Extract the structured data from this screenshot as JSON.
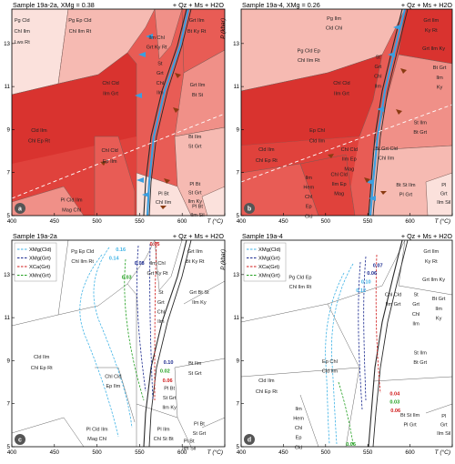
{
  "axes": {
    "xlabel": "T (°C)",
    "ylabel": "P (kbar)",
    "xticks": [
      "400",
      "450",
      "500",
      "550",
      "600",
      "650"
    ],
    "yticks": [
      "5",
      "7",
      "9",
      "11",
      "13"
    ],
    "xlim": [
      400,
      650
    ],
    "ylim": [
      5,
      14.6
    ]
  },
  "colors": {
    "dark": "#d9332f",
    "mid": "#e85c55",
    "light": "#f09088",
    "pale": "#f6bab2",
    "palest": "#fbe1dc",
    "blue": "#3b9fe0",
    "brown": "#8a3b12",
    "cyan": "#3fb3e6",
    "navy": "#1b2a8f",
    "red": "#d01818",
    "green": "#22a020"
  },
  "panels": [
    {
      "id": "a",
      "title": "Sample 19a-2a, XMg = 0.38",
      "assemblage": "+ Qz + Ms + H2O"
    },
    {
      "id": "b",
      "title": "Sample 19a-4, XMg = 0.26",
      "assemblage": "+ Qz + Ms + H2O"
    },
    {
      "id": "c",
      "title": "Sample 19a-2a",
      "assemblage": "+ Qz + Ms + H2O"
    },
    {
      "id": "d",
      "title": "Sample 19a-4",
      "assemblage": "+ Qz + Ms + H2O"
    }
  ],
  "fields_top_a": [
    {
      "text": "Pg Cld",
      "t": 412,
      "p": 14.0
    },
    {
      "text": "Chl Ilm",
      "t": 412,
      "p": 13.5
    },
    {
      "text": "Lws Rt",
      "t": 412,
      "p": 13.0
    },
    {
      "text": "Pg Ep Cld",
      "t": 480,
      "p": 14.0
    },
    {
      "text": "Chl Ilm Rt",
      "t": 480,
      "p": 13.5
    },
    {
      "text": "Grt Ilm",
      "t": 617,
      "p": 14.0
    },
    {
      "text": "Bt Ky Rt",
      "t": 617,
      "p": 13.5
    },
    {
      "text": "Ilm Chl",
      "t": 570,
      "p": 13.2
    },
    {
      "text": "Grt Ky Rt",
      "t": 570,
      "p": 12.75
    },
    {
      "text": "St",
      "t": 574,
      "p": 12.0
    },
    {
      "text": "Grt",
      "t": 574,
      "p": 11.55
    },
    {
      "text": "Chl",
      "t": 574,
      "p": 11.1
    },
    {
      "text": "Ilm",
      "t": 574,
      "p": 10.65
    },
    {
      "text": "Chl Cld",
      "t": 516,
      "p": 11.1
    },
    {
      "text": "Ilm Grt",
      "t": 516,
      "p": 10.6
    },
    {
      "text": "Grt Ilm",
      "t": 618,
      "p": 11.0
    },
    {
      "text": "Bt St",
      "t": 618,
      "p": 10.55
    },
    {
      "text": "Cld Ilm",
      "t": 432,
      "p": 8.9
    },
    {
      "text": "Chl Ep Rt",
      "t": 432,
      "p": 8.4
    },
    {
      "text": "Bt Ilm",
      "t": 615,
      "p": 8.6
    },
    {
      "text": "St Grt",
      "t": 615,
      "p": 8.15
    },
    {
      "text": "Chl Cld",
      "t": 515,
      "p": 7.95
    },
    {
      "text": "Ep Ilm",
      "t": 515,
      "p": 7.45
    },
    {
      "text": "Pl Bt",
      "t": 615,
      "p": 6.4
    },
    {
      "text": "St Grt",
      "t": 615,
      "p": 6.0
    },
    {
      "text": "Ilm Ky",
      "t": 615,
      "p": 5.6
    },
    {
      "text": "Pl Cld Ilm",
      "t": 470,
      "p": 5.65
    },
    {
      "text": "Mag Chl",
      "t": 470,
      "p": 5.2
    },
    {
      "text": "Pl Bt",
      "t": 578,
      "p": 5.95
    },
    {
      "text": "Chl Ilm",
      "t": 578,
      "p": 5.55
    },
    {
      "text": "Pl Bt",
      "t": 618,
      "p": 5.35
    },
    {
      "text": "Ilm Sil",
      "t": 618,
      "p": 4.95
    }
  ],
  "fields_top_b": [
    {
      "text": "Grt Ilm",
      "t": 625,
      "p": 14.0
    },
    {
      "text": "Ky Rt",
      "t": 625,
      "p": 13.55
    },
    {
      "text": "Grt Ilm Ky",
      "t": 628,
      "p": 12.7
    },
    {
      "text": "Pg Cld Ep",
      "t": 480,
      "p": 12.6
    },
    {
      "text": "Chl Ilm Rt",
      "t": 480,
      "p": 12.15
    },
    {
      "text": "Pg Ilm",
      "t": 510,
      "p": 14.1
    },
    {
      "text": "Cld Chl",
      "t": 510,
      "p": 13.65
    },
    {
      "text": "St",
      "t": 562,
      "p": 12.3
    },
    {
      "text": "Grt",
      "t": 562,
      "p": 11.85
    },
    {
      "text": "Chl",
      "t": 562,
      "p": 11.4
    },
    {
      "text": "Ilm",
      "t": 562,
      "p": 10.95
    },
    {
      "text": "Chl Cld",
      "t": 519,
      "p": 11.1
    },
    {
      "text": "Ilm Grt",
      "t": 519,
      "p": 10.6
    },
    {
      "text": "Bt Grt",
      "t": 635,
      "p": 11.8
    },
    {
      "text": "Ilm",
      "t": 635,
      "p": 11.35
    },
    {
      "text": "Ky",
      "t": 635,
      "p": 10.9
    },
    {
      "text": "St Ilm",
      "t": 612,
      "p": 9.25
    },
    {
      "text": "Bt Grt",
      "t": 612,
      "p": 8.8
    },
    {
      "text": "Ep Chl",
      "t": 490,
      "p": 8.9
    },
    {
      "text": "Cld Ilm",
      "t": 490,
      "p": 8.4
    },
    {
      "text": "Cld Ilm",
      "t": 430,
      "p": 8.0
    },
    {
      "text": "Chl Ep Rt",
      "t": 430,
      "p": 7.5
    },
    {
      "text": "Bt Grt Cld",
      "t": 572,
      "p": 8.05
    },
    {
      "text": "Chl Ilm",
      "t": 572,
      "p": 7.6
    },
    {
      "text": "Chl Cld",
      "t": 528,
      "p": 8.0
    },
    {
      "text": "Ilm Ep",
      "t": 528,
      "p": 7.55
    },
    {
      "text": "Mag",
      "t": 528,
      "p": 7.1
    },
    {
      "text": "Ilm",
      "t": 480,
      "p": 6.7
    },
    {
      "text": "Hem",
      "t": 480,
      "p": 6.25
    },
    {
      "text": "Chl",
      "t": 480,
      "p": 5.8
    },
    {
      "text": "Ep",
      "t": 480,
      "p": 5.35
    },
    {
      "text": "Cld",
      "t": 480,
      "p": 4.9
    },
    {
      "text": "Chl Cld",
      "t": 516,
      "p": 6.85
    },
    {
      "text": "Ilm Ep",
      "t": 516,
      "p": 6.4
    },
    {
      "text": "Mag",
      "t": 516,
      "p": 5.95
    },
    {
      "text": "Bt St Ilm",
      "t": 595,
      "p": 6.35
    },
    {
      "text": "Pl Grt",
      "t": 595,
      "p": 5.9
    },
    {
      "text": "Pl",
      "t": 640,
      "p": 6.35
    },
    {
      "text": "Grt",
      "t": 640,
      "p": 5.95
    },
    {
      "text": "Ilm Sil",
      "t": 640,
      "p": 5.55
    }
  ],
  "fields_bottom_c": [
    {
      "text": "Pg Ep Cld",
      "t": 483,
      "p": 14.0
    },
    {
      "text": "Chl Ilm Rt",
      "t": 483,
      "p": 13.55
    },
    {
      "text": "Ilm Chl",
      "t": 571,
      "p": 13.45
    },
    {
      "text": "Grt Ky Rt",
      "t": 571,
      "p": 13.0
    },
    {
      "text": "Grt Ilm",
      "t": 615,
      "p": 14.0
    },
    {
      "text": "Bt Ky Rt",
      "t": 615,
      "p": 13.55
    },
    {
      "text": "St",
      "t": 575,
      "p": 12.1
    },
    {
      "text": "Grt",
      "t": 575,
      "p": 11.65
    },
    {
      "text": "Chl",
      "t": 575,
      "p": 11.2
    },
    {
      "text": "Ilm",
      "t": 575,
      "p": 10.75
    },
    {
      "text": "Grt Bt St",
      "t": 620,
      "p": 12.1
    },
    {
      "text": "Ilm Ky",
      "t": 620,
      "p": 11.65
    },
    {
      "text": "Cld Ilm",
      "t": 435,
      "p": 9.1
    },
    {
      "text": "Chl Ep Rt",
      "t": 435,
      "p": 8.6
    },
    {
      "text": "Bt Ilm",
      "t": 615,
      "p": 8.8
    },
    {
      "text": "St Grt",
      "t": 615,
      "p": 8.35
    },
    {
      "text": "Chl Cld",
      "t": 519,
      "p": 8.2
    },
    {
      "text": "Ep Ilm",
      "t": 519,
      "p": 7.75
    },
    {
      "text": "Pl Bt",
      "t": 585,
      "p": 7.65
    },
    {
      "text": "St Grt",
      "t": 585,
      "p": 7.2
    },
    {
      "text": "Ilm Ky",
      "t": 585,
      "p": 6.75
    },
    {
      "text": "Pl Cld Ilm",
      "t": 500,
      "p": 5.75
    },
    {
      "text": "Mag Chl",
      "t": 500,
      "p": 5.3
    },
    {
      "text": "Pl Ilm",
      "t": 578,
      "p": 5.75
    },
    {
      "text": "Chl St Bt",
      "t": 578,
      "p": 5.3
    },
    {
      "text": "Pl Bt",
      "t": 620,
      "p": 6.0
    },
    {
      "text": "St Grt",
      "t": 620,
      "p": 5.55
    },
    {
      "text": "Pl Bt",
      "t": 608,
      "p": 5.2
    },
    {
      "text": "Ilm Sil",
      "t": 608,
      "p": 4.85
    }
  ],
  "fields_bottom_d": [
    {
      "text": "Grt Ilm",
      "t": 625,
      "p": 14.0
    },
    {
      "text": "Ky Rt",
      "t": 625,
      "p": 13.55
    },
    {
      "text": "Grt Ilm Ky",
      "t": 628,
      "p": 12.7
    },
    {
      "text": "Pg Cld Ep",
      "t": 470,
      "p": 12.8
    },
    {
      "text": "Chl Ilm Rt",
      "t": 470,
      "p": 12.35
    },
    {
      "text": "Chl Cld",
      "t": 580,
      "p": 12.0
    },
    {
      "text": "Ilm Grt",
      "t": 580,
      "p": 11.55
    },
    {
      "text": "St",
      "t": 607,
      "p": 12.0
    },
    {
      "text": "Grt",
      "t": 607,
      "p": 11.55
    },
    {
      "text": "Chl",
      "t": 607,
      "p": 11.1
    },
    {
      "text": "Ilm",
      "t": 607,
      "p": 10.65
    },
    {
      "text": "Bt Grt",
      "t": 634,
      "p": 11.8
    },
    {
      "text": "Ilm",
      "t": 634,
      "p": 11.35
    },
    {
      "text": "Ky",
      "t": 634,
      "p": 10.9
    },
    {
      "text": "St Ilm",
      "t": 612,
      "p": 9.3
    },
    {
      "text": "Bt Grt",
      "t": 612,
      "p": 8.85
    },
    {
      "text": "Ep Chl",
      "t": 505,
      "p": 8.9
    },
    {
      "text": "Cld Ilm",
      "t": 505,
      "p": 8.45
    },
    {
      "text": "Cld Ilm",
      "t": 430,
      "p": 8.0
    },
    {
      "text": "Chl Ep Rt",
      "t": 430,
      "p": 7.5
    },
    {
      "text": "Ilm",
      "t": 468,
      "p": 6.7
    },
    {
      "text": "Hem",
      "t": 468,
      "p": 6.25
    },
    {
      "text": "Chl",
      "t": 468,
      "p": 5.8
    },
    {
      "text": "Ep",
      "t": 468,
      "p": 5.35
    },
    {
      "text": "Cld",
      "t": 468,
      "p": 4.9
    },
    {
      "text": "Bt St Ilm",
      "t": 600,
      "p": 6.4
    },
    {
      "text": "Pl Grt",
      "t": 600,
      "p": 5.95
    },
    {
      "text": "Pl",
      "t": 640,
      "p": 6.35
    },
    {
      "text": "Grt",
      "t": 640,
      "p": 5.95
    },
    {
      "text": "Ilm Sil",
      "t": 640,
      "p": 5.55
    }
  ],
  "legend_c": [
    {
      "label": "XMg(Cld)",
      "color": "#3fb3e6"
    },
    {
      "label": "XMg(Grt)",
      "color": "#1b2a8f"
    },
    {
      "label": "XCa(Grt)",
      "color": "#d01818"
    },
    {
      "label": "XMn(Grt)",
      "color": "#22a020"
    }
  ],
  "legend_d": [
    {
      "label": "XMg(Cld)",
      "color": "#3fb3e6"
    },
    {
      "label": "XMg(Grt)",
      "color": "#1b2a8f"
    },
    {
      "label": "XCa(Grt)",
      "color": "#d01818"
    },
    {
      "label": "XMn(Grt)",
      "color": "#22a020"
    }
  ],
  "iso_c": [
    {
      "text": "0.16",
      "t": 522,
      "p": 14.1,
      "color": "#3fb3e6"
    },
    {
      "text": "0.14",
      "t": 514,
      "p": 13.7,
      "color": "#3fb3e6"
    },
    {
      "text": "0.08",
      "t": 544,
      "p": 13.45,
      "color": "#1b2a8f"
    },
    {
      "text": "0.05",
      "t": 562,
      "p": 14.35,
      "color": "#d01818"
    },
    {
      "text": "0.03",
      "t": 529,
      "p": 12.8,
      "color": "#22a020"
    },
    {
      "text": "0.10",
      "t": 578,
      "p": 8.85,
      "color": "#1b2a8f"
    },
    {
      "text": "0.02",
      "t": 574,
      "p": 8.45,
      "color": "#22a020"
    },
    {
      "text": "0.06",
      "t": 577,
      "p": 8.0,
      "color": "#d01818"
    }
  ],
  "iso_d": [
    {
      "text": "0.07",
      "t": 556,
      "p": 13.35,
      "color": "#1b2a8f"
    },
    {
      "text": "0.06",
      "t": 549,
      "p": 13.0,
      "color": "#1b2a8f"
    },
    {
      "text": "0.10",
      "t": 542,
      "p": 12.6,
      "color": "#3fb3e6"
    },
    {
      "text": "0.12",
      "t": 536,
      "p": 12.2,
      "color": "#3fb3e6"
    },
    {
      "text": "0.04",
      "t": 576,
      "p": 7.4,
      "color": "#d01818"
    },
    {
      "text": "0.03",
      "t": 576,
      "p": 7.0,
      "color": "#22a020"
    },
    {
      "text": "0.06",
      "t": 577,
      "p": 6.6,
      "color": "#d01818"
    },
    {
      "text": "0.06",
      "t": 524,
      "p": 5.05,
      "color": "#22a020"
    }
  ],
  "labels": {
    "a": "a",
    "b": "b",
    "c": "c",
    "d": "d"
  }
}
